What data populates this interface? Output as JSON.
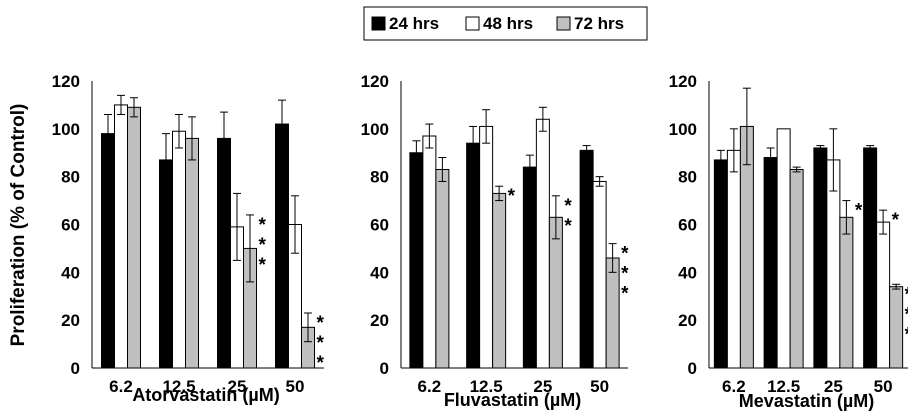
{
  "legend": {
    "items": [
      {
        "label": "24 hrs",
        "color": "#000000"
      },
      {
        "label": "48 hrs",
        "color": "#ffffff"
      },
      {
        "label": "72 hrs",
        "color": "#c0c0c0"
      }
    ]
  },
  "ylabel": "Proliferation (% of Control)",
  "chart_data": [
    {
      "type": "bar",
      "xlabel": "Atorvastatin (µM)",
      "categories": [
        "6.2",
        "12.5",
        "25",
        "50"
      ],
      "ylim": [
        0,
        120
      ],
      "yticks": [
        "0",
        "20",
        "40",
        "60",
        "80",
        "100",
        "120"
      ],
      "series": [
        {
          "name": "24 hrs",
          "color": "#000000",
          "values": [
            98,
            87,
            96,
            102
          ],
          "errors": [
            8,
            11,
            11,
            10
          ]
        },
        {
          "name": "48 hrs",
          "color": "#ffffff",
          "values": [
            110,
            99,
            59,
            60
          ],
          "errors": [
            4,
            7,
            14,
            12
          ]
        },
        {
          "name": "72 hrs",
          "color": "#c0c0c0",
          "values": [
            109,
            96,
            50,
            17
          ],
          "errors": [
            4,
            9,
            14,
            6
          ]
        }
      ],
      "annotations": [
        {
          "category": "25",
          "series": "72 hrs",
          "text": "***"
        },
        {
          "category": "50",
          "series": "72 hrs",
          "text": "***"
        }
      ]
    },
    {
      "type": "bar",
      "xlabel": "Fluvastatin (µM)",
      "categories": [
        "6.2",
        "12.5",
        "25",
        "50"
      ],
      "ylim": [
        0,
        120
      ],
      "yticks": [
        "0",
        "20",
        "40",
        "60",
        "80",
        "100",
        "120"
      ],
      "series": [
        {
          "name": "24 hrs",
          "color": "#000000",
          "values": [
            90,
            94,
            84,
            91
          ],
          "errors": [
            5,
            7,
            5,
            2
          ]
        },
        {
          "name": "48 hrs",
          "color": "#ffffff",
          "values": [
            97,
            101,
            104,
            78
          ],
          "errors": [
            5,
            7,
            5,
            2
          ]
        },
        {
          "name": "72 hrs",
          "color": "#c0c0c0",
          "values": [
            83,
            73,
            63,
            46
          ],
          "errors": [
            5,
            3,
            9,
            6
          ]
        }
      ],
      "annotations": [
        {
          "category": "12.5",
          "series": "72 hrs",
          "text": "*"
        },
        {
          "category": "25",
          "series": "72 hrs",
          "text": "**"
        },
        {
          "category": "50",
          "series": "72 hrs",
          "text": "***"
        }
      ]
    },
    {
      "type": "bar",
      "xlabel": "Mevastatin (µM)",
      "categories": [
        "6.2",
        "12.5",
        "25",
        "50"
      ],
      "ylim": [
        0,
        120
      ],
      "yticks": [
        "0",
        "20",
        "40",
        "60",
        "80",
        "100",
        "120"
      ],
      "series": [
        {
          "name": "24 hrs",
          "color": "#000000",
          "values": [
            87,
            88,
            92,
            92
          ],
          "errors": [
            4,
            4,
            1,
            1
          ]
        },
        {
          "name": "48 hrs",
          "color": "#ffffff",
          "values": [
            91,
            100,
            87,
            61
          ],
          "errors": [
            9,
            0,
            13,
            5
          ]
        },
        {
          "name": "72 hrs",
          "color": "#c0c0c0",
          "values": [
            101,
            83,
            63,
            34
          ],
          "errors": [
            16,
            1,
            7,
            1
          ]
        }
      ],
      "annotations": [
        {
          "category": "25",
          "series": "72 hrs",
          "text": "*"
        },
        {
          "category": "50",
          "series": "48 hrs",
          "text": "*"
        },
        {
          "category": "50",
          "series": "72 hrs",
          "text": "***"
        }
      ]
    }
  ]
}
